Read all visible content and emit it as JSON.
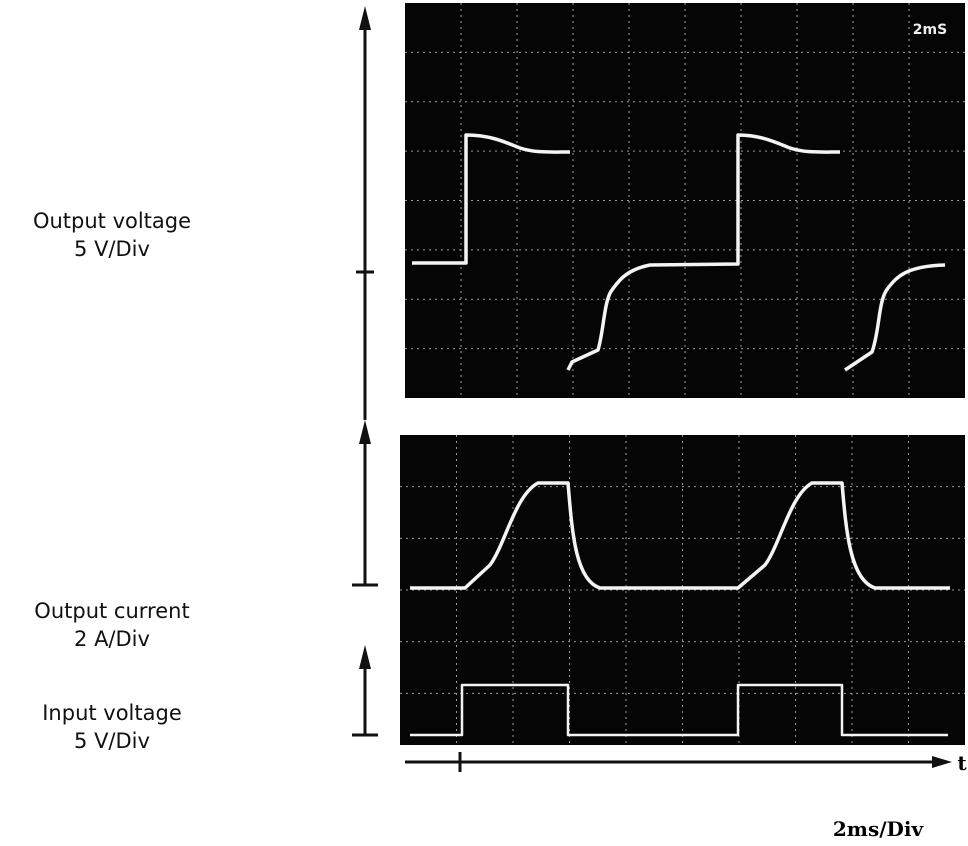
{
  "labels": {
    "output_voltage": {
      "title": "Output voltage",
      "scale": "5 V/Div"
    },
    "output_current": {
      "title": "Output current",
      "scale": "2 A/Div"
    },
    "input_voltage": {
      "title": "Input voltage",
      "scale": "5 V/Div"
    }
  },
  "screen": {
    "timebase_readout": "2mS"
  },
  "time_axis": {
    "label": "t",
    "scale": "2ms/Div"
  }
}
